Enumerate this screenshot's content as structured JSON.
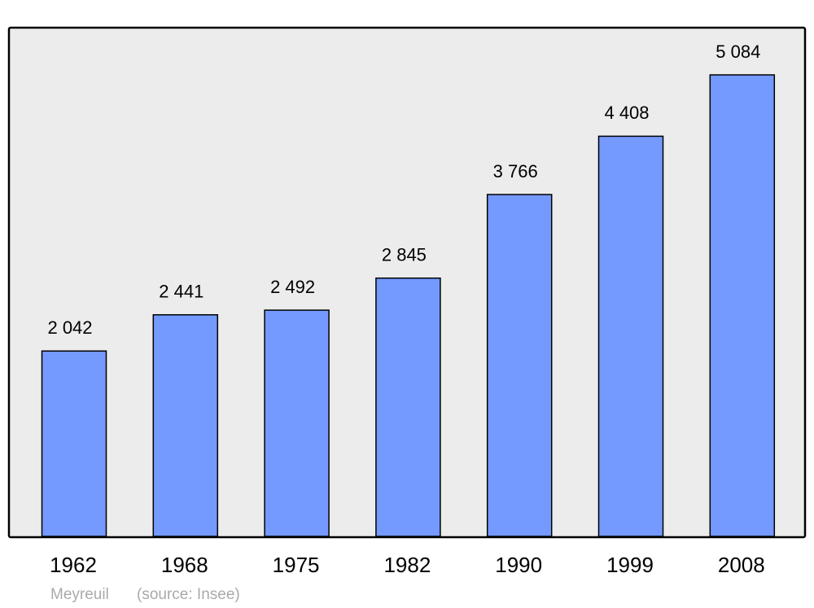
{
  "chart_data": {
    "type": "bar",
    "categories": [
      "1962",
      "1968",
      "1975",
      "1982",
      "1990",
      "1999",
      "2008"
    ],
    "values": [
      2042,
      2441,
      2492,
      2845,
      3766,
      4408,
      5084
    ],
    "value_labels": [
      "2 042",
      "2 441",
      "2 492",
      "2 845",
      "3 766",
      "4 408",
      "5 084"
    ],
    "color": "#7499ff",
    "annotations": [
      "Meyreuil",
      "(source: Insee)"
    ]
  }
}
